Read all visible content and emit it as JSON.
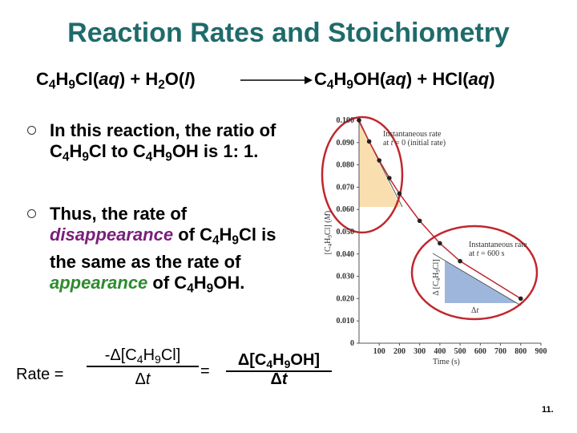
{
  "title": "Reaction Rates and Stoichiometry",
  "equation": {
    "reactants": [
      "C",
      "4",
      "H",
      "9",
      "Cl(",
      "aq",
      ") + H",
      "2",
      "O(",
      "l",
      ")"
    ],
    "products": [
      "C",
      "4",
      "H",
      "9",
      "OH(",
      "aq",
      ") + HCl(",
      "aq",
      ")"
    ]
  },
  "bullets": [
    [
      "In this reaction, the ratio of C",
      "4",
      "H",
      "9",
      "Cl to C",
      "4",
      "H",
      "9",
      "OH is 1: 1."
    ],
    [
      "Thus, the rate of ",
      "disappearance",
      " of C",
      "4",
      "H",
      "9",
      "Cl is the same as the rate of ",
      "appearance",
      " of C",
      "4",
      "H",
      "9",
      "OH."
    ]
  ],
  "rate": {
    "label": "Rate =",
    "left_numerator": [
      "-Δ[C",
      "4",
      "H",
      "9",
      "Cl]"
    ],
    "left_denominator": [
      "Δ",
      "t"
    ],
    "equals": "=",
    "right_numerator": [
      "Δ[C",
      "4",
      "H",
      "9",
      "OH]"
    ],
    "right_denominator": [
      "Δ",
      "t"
    ]
  },
  "figure": {
    "type": "line",
    "x": [
      0,
      50,
      100,
      150,
      200,
      300,
      400,
      500,
      800
    ],
    "values": [
      0.1,
      0.0905,
      0.082,
      0.0741,
      0.0671,
      0.0549,
      0.0448,
      0.0368,
      0.02
    ],
    "color": "#c0272d",
    "xlim": [
      0,
      900
    ],
    "ylim": [
      0,
      0.1
    ],
    "xticks": [
      100,
      200,
      300,
      400,
      500,
      600,
      700,
      800,
      900
    ],
    "yticks": [
      0,
      {
        "value": 0.01,
        "label": "0.010"
      },
      {
        "value": 0.02,
        "label": "0.020"
      },
      {
        "value": 0.03,
        "label": "0.030"
      },
      {
        "value": 0.04,
        "label": "0.040"
      },
      {
        "value": 0.05,
        "label": "0.050"
      },
      {
        "value": 0.06,
        "label": "0.060"
      },
      {
        "value": 0.07,
        "label": "0.070"
      },
      {
        "value": 0.08,
        "label": "0.080"
      },
      {
        "value": 0.09,
        "label": "0.090"
      },
      {
        "value": 0.1,
        "label": "0.100"
      }
    ],
    "xlabel": "Time (s)",
    "ylabel": [
      "[C",
      "4",
      "H",
      "9",
      "Cl] (",
      "M",
      ")"
    ],
    "annotation_initial": [
      "Instantaneous rate at ",
      "t",
      " = 0 (initial rate)"
    ],
    "annotation_600": [
      "Instantaneous rate at ",
      "t",
      " = 600 s"
    ],
    "delta_conc": [
      "Δ [C",
      "4",
      "H",
      "9",
      "Cl]"
    ],
    "delta_t": [
      "Δ",
      "t"
    ]
  },
  "page_number": "11."
}
